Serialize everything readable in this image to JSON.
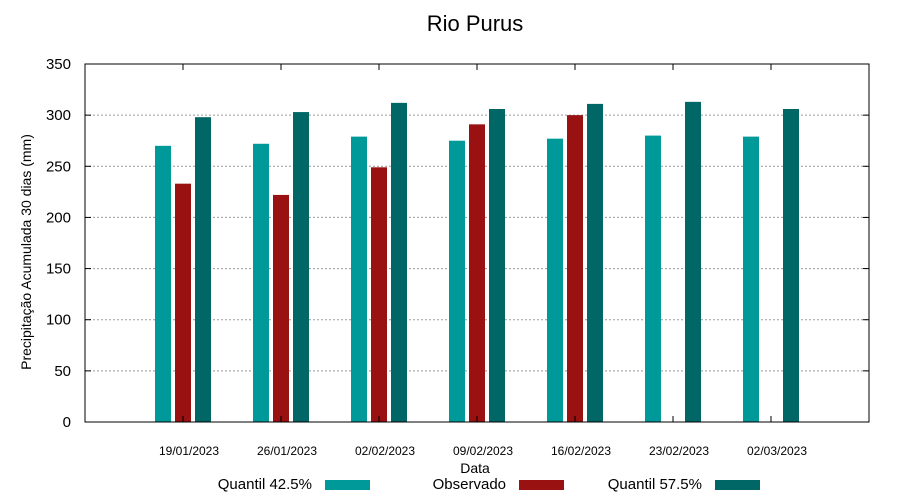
{
  "chart_data": {
    "type": "bar",
    "title": "Rio Purus",
    "xlabel": "Data",
    "ylabel": "Precipitação Acumulada 30 dias (mm)",
    "ylim": [
      0,
      350
    ],
    "yticks": [
      0,
      50,
      100,
      150,
      200,
      250,
      300,
      350
    ],
    "grid": true,
    "legend_position": "bottom",
    "categories": [
      "19/01/2023",
      "26/01/2023",
      "02/02/2023",
      "09/02/2023",
      "16/02/2023",
      "23/02/2023",
      "02/03/2023"
    ],
    "series": [
      {
        "name": "Quantil 42.5%",
        "color": "#009999",
        "values": [
          270,
          272,
          279,
          275,
          277,
          280,
          279
        ]
      },
      {
        "name": "Observado",
        "color": "#991111",
        "values": [
          233,
          222,
          249,
          291,
          300,
          null,
          null
        ]
      },
      {
        "name": "Quantil 57.5%",
        "color": "#006666",
        "values": [
          298,
          303,
          312,
          306,
          311,
          313,
          306
        ]
      }
    ]
  }
}
